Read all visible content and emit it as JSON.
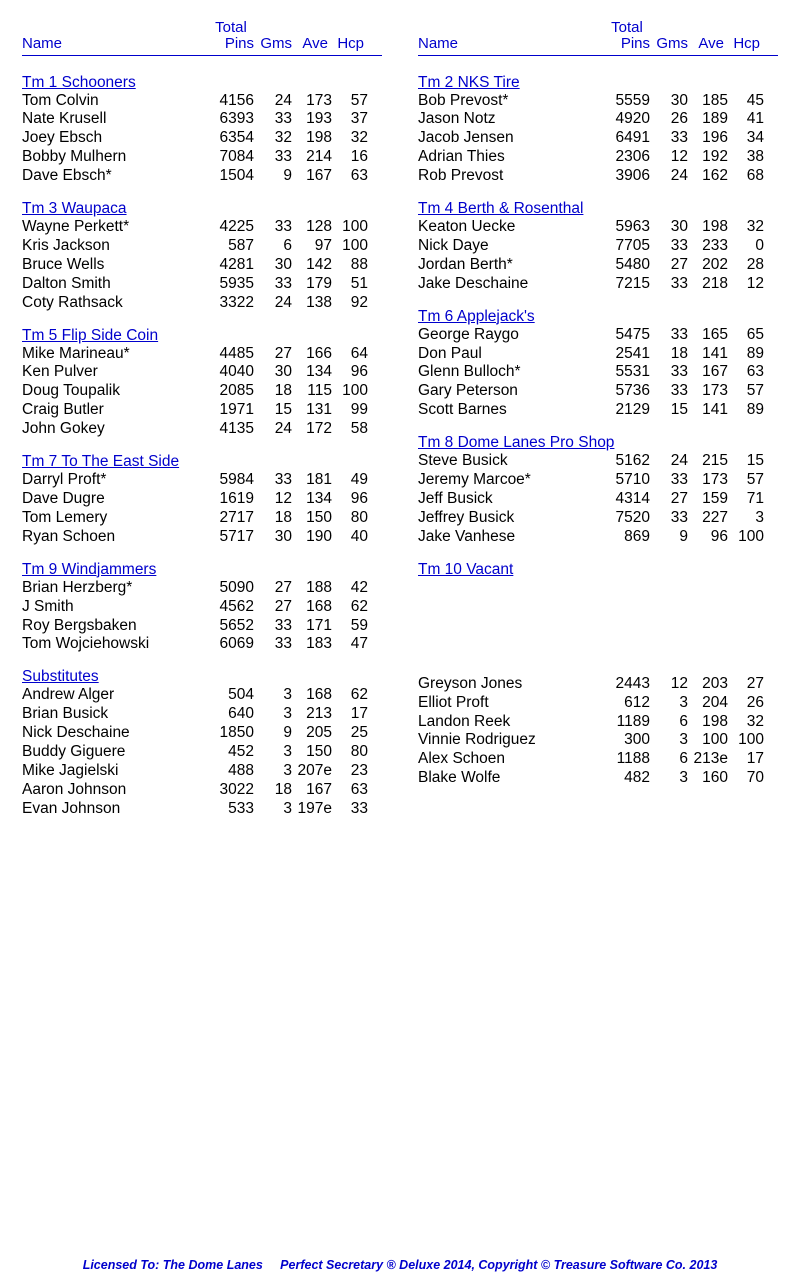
{
  "headers": {
    "name": "Name",
    "total": "Total",
    "pins": "Pins",
    "gms": "Gms",
    "ave": "Ave",
    "hcp": "Hcp"
  },
  "leftSections": [
    {
      "title": "Tm 1 Schooners",
      "rows": [
        {
          "n": "Tom Colvin",
          "p": "4156",
          "g": "24",
          "a": "173",
          "h": "57"
        },
        {
          "n": "Nate Krusell",
          "p": "6393",
          "g": "33",
          "a": "193",
          "h": "37"
        },
        {
          "n": "Joey Ebsch",
          "p": "6354",
          "g": "32",
          "a": "198",
          "h": "32"
        },
        {
          "n": "Bobby Mulhern",
          "p": "7084",
          "g": "33",
          "a": "214",
          "h": "16"
        },
        {
          "n": "Dave Ebsch*",
          "p": "1504",
          "g": "9",
          "a": "167",
          "h": "63"
        }
      ]
    },
    {
      "title": "Tm 3 Waupaca",
      "rows": [
        {
          "n": "Wayne Perkett*",
          "p": "4225",
          "g": "33",
          "a": "128",
          "h": "100"
        },
        {
          "n": "Kris Jackson",
          "p": "587",
          "g": "6",
          "a": "97",
          "h": "100"
        },
        {
          "n": "Bruce Wells",
          "p": "4281",
          "g": "30",
          "a": "142",
          "h": "88"
        },
        {
          "n": "Dalton Smith",
          "p": "5935",
          "g": "33",
          "a": "179",
          "h": "51"
        },
        {
          "n": "Coty Rathsack",
          "p": "3322",
          "g": "24",
          "a": "138",
          "h": "92"
        }
      ]
    },
    {
      "title": "Tm 5 Flip Side Coin",
      "rows": [
        {
          "n": "Mike Marineau*",
          "p": "4485",
          "g": "27",
          "a": "166",
          "h": "64"
        },
        {
          "n": "Ken Pulver",
          "p": "4040",
          "g": "30",
          "a": "134",
          "h": "96"
        },
        {
          "n": "Doug Toupalik",
          "p": "2085",
          "g": "18",
          "a": "115",
          "h": "100"
        },
        {
          "n": "Craig Butler",
          "p": "1971",
          "g": "15",
          "a": "131",
          "h": "99"
        },
        {
          "n": "John Gokey",
          "p": "4135",
          "g": "24",
          "a": "172",
          "h": "58"
        }
      ]
    },
    {
      "title": "Tm 7 To The East Side",
      "rows": [
        {
          "n": "Darryl Proft*",
          "p": "5984",
          "g": "33",
          "a": "181",
          "h": "49"
        },
        {
          "n": "Dave Dugre",
          "p": "1619",
          "g": "12",
          "a": "134",
          "h": "96"
        },
        {
          "n": "Tom Lemery",
          "p": "2717",
          "g": "18",
          "a": "150",
          "h": "80"
        },
        {
          "n": "Ryan Schoen",
          "p": "5717",
          "g": "30",
          "a": "190",
          "h": "40"
        }
      ]
    },
    {
      "title": "Tm 9 Windjammers",
      "rows": [
        {
          "n": "Brian Herzberg*",
          "p": "5090",
          "g": "27",
          "a": "188",
          "h": "42"
        },
        {
          "n": "J Smith",
          "p": "4562",
          "g": "27",
          "a": "168",
          "h": "62"
        },
        {
          "n": "Roy Bergsbaken",
          "p": "5652",
          "g": "33",
          "a": "171",
          "h": "59"
        },
        {
          "n": "Tom Wojciehowski",
          "p": "6069",
          "g": "33",
          "a": "183",
          "h": "47"
        }
      ]
    },
    {
      "title": "Substitutes",
      "rows": [
        {
          "n": "Andrew Alger",
          "p": "504",
          "g": "3",
          "a": "168",
          "h": "62"
        },
        {
          "n": "Brian Busick",
          "p": "640",
          "g": "3",
          "a": "213",
          "h": "17"
        },
        {
          "n": "Nick Deschaine",
          "p": "1850",
          "g": "9",
          "a": "205",
          "h": "25"
        },
        {
          "n": "Buddy Giguere",
          "p": "452",
          "g": "3",
          "a": "150",
          "h": "80"
        },
        {
          "n": "Mike Jagielski",
          "p": "488",
          "g": "3",
          "a": "207e",
          "h": "23"
        },
        {
          "n": "Aaron Johnson",
          "p": "3022",
          "g": "18",
          "a": "167",
          "h": "63"
        },
        {
          "n": "Evan Johnson",
          "p": "533",
          "g": "3",
          "a": "197e",
          "h": "33"
        }
      ]
    }
  ],
  "rightSections": [
    {
      "title": "Tm 2 NKS Tire",
      "rows": [
        {
          "n": "Bob Prevost*",
          "p": "5559",
          "g": "30",
          "a": "185",
          "h": "45"
        },
        {
          "n": "Jason Notz",
          "p": "4920",
          "g": "26",
          "a": "189",
          "h": "41"
        },
        {
          "n": "Jacob Jensen",
          "p": "6491",
          "g": "33",
          "a": "196",
          "h": "34"
        },
        {
          "n": "Adrian Thies",
          "p": "2306",
          "g": "12",
          "a": "192",
          "h": "38"
        },
        {
          "n": "Rob Prevost",
          "p": "3906",
          "g": "24",
          "a": "162",
          "h": "68"
        }
      ]
    },
    {
      "title": "Tm 4 Berth & Rosenthal",
      "rows": [
        {
          "n": "Keaton Uecke",
          "p": "5963",
          "g": "30",
          "a": "198",
          "h": "32"
        },
        {
          "n": "Nick Daye",
          "p": "7705",
          "g": "33",
          "a": "233",
          "h": "0"
        },
        {
          "n": "Jordan Berth*",
          "p": "5480",
          "g": "27",
          "a": "202",
          "h": "28"
        },
        {
          "n": "Jake Deschaine",
          "p": "7215",
          "g": "33",
          "a": "218",
          "h": "12"
        }
      ]
    },
    {
      "title": "Tm 6 Applejack's",
      "rows": [
        {
          "n": "George Raygo",
          "p": "5475",
          "g": "33",
          "a": "165",
          "h": "65"
        },
        {
          "n": "Don Paul",
          "p": "2541",
          "g": "18",
          "a": "141",
          "h": "89"
        },
        {
          "n": "Glenn Bulloch*",
          "p": "5531",
          "g": "33",
          "a": "167",
          "h": "63"
        },
        {
          "n": "Gary Peterson",
          "p": "5736",
          "g": "33",
          "a": "173",
          "h": "57"
        },
        {
          "n": "Scott Barnes",
          "p": "2129",
          "g": "15",
          "a": "141",
          "h": "89"
        }
      ]
    },
    {
      "title": "Tm 8 Dome Lanes Pro Shop",
      "rows": [
        {
          "n": "Steve Busick",
          "p": "5162",
          "g": "24",
          "a": "215",
          "h": "15"
        },
        {
          "n": "Jeremy Marcoe*",
          "p": "5710",
          "g": "33",
          "a": "173",
          "h": "57"
        },
        {
          "n": "Jeff Busick",
          "p": "4314",
          "g": "27",
          "a": "159",
          "h": "71"
        },
        {
          "n": "Jeffrey Busick",
          "p": "7520",
          "g": "33",
          "a": "227",
          "h": "3"
        },
        {
          "n": "Jake Vanhese",
          "p": "869",
          "g": "9",
          "a": "96",
          "h": "100"
        }
      ]
    },
    {
      "title": "Tm 10 Vacant",
      "rows": []
    },
    {
      "title": "",
      "rows": [
        {
          "n": "Greyson Jones",
          "p": "2443",
          "g": "12",
          "a": "203",
          "h": "27"
        },
        {
          "n": "Elliot Proft",
          "p": "612",
          "g": "3",
          "a": "204",
          "h": "26"
        },
        {
          "n": "Landon Reek",
          "p": "1189",
          "g": "6",
          "a": "198",
          "h": "32"
        },
        {
          "n": "Vinnie Rodriguez",
          "p": "300",
          "g": "3",
          "a": "100",
          "h": "100"
        },
        {
          "n": "Alex Schoen",
          "p": "1188",
          "g": "6",
          "a": "213e",
          "h": "17"
        },
        {
          "n": "Blake Wolfe",
          "p": "482",
          "g": "3",
          "a": "160",
          "h": "70"
        }
      ]
    }
  ],
  "extraSpacing": {
    "4": 96,
    "5": 96
  },
  "footer": "Licensed To: The Dome Lanes     Perfect Secretary ® Deluxe  2014, Copyright © Treasure Software Co. 2013"
}
